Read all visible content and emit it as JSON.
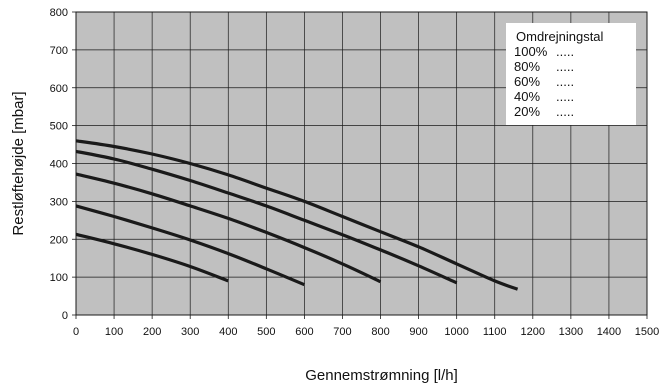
{
  "chart_data": {
    "type": "line",
    "xlabel": "Gennemstrømning [l/h]",
    "ylabel": "Restløftehøjde [mbar]",
    "xlim": [
      0,
      1500
    ],
    "ylim": [
      0,
      800
    ],
    "x_ticks": [
      "0",
      "100",
      "200",
      "300",
      "400",
      "500",
      "600",
      "700",
      "800",
      "900",
      "1000",
      "1100",
      "1200",
      "1300",
      "1400",
      "1500"
    ],
    "y_ticks": [
      "0",
      "100",
      "200",
      "300",
      "400",
      "500",
      "600",
      "700",
      "800"
    ],
    "grid": true,
    "background": "#c0c0c0",
    "line_color": "#1a1a1a",
    "legend": {
      "title": "Omdrejningstal",
      "placement": "top-right",
      "entries": [
        {
          "label": "100%",
          "marker": "....."
        },
        {
          "label": "80%",
          "marker": "....."
        },
        {
          "label": "60%",
          "marker": "....."
        },
        {
          "label": "40%",
          "marker": "....."
        },
        {
          "label": "20%",
          "marker": "....."
        }
      ]
    },
    "series": [
      {
        "x": [
          0,
          100,
          200,
          300,
          400,
          500,
          600,
          700,
          800,
          900,
          1000,
          1100,
          1160
        ],
        "y": [
          460,
          445,
          425,
          400,
          370,
          335,
          300,
          260,
          220,
          180,
          135,
          90,
          68
        ]
      },
      {
        "x": [
          0,
          100,
          200,
          300,
          400,
          500,
          600,
          700,
          800,
          900,
          1000
        ],
        "y": [
          432,
          412,
          385,
          355,
          322,
          288,
          250,
          212,
          172,
          130,
          85
        ]
      },
      {
        "x": [
          0,
          100,
          200,
          300,
          400,
          500,
          600,
          700,
          800
        ],
        "y": [
          372,
          348,
          320,
          288,
          255,
          218,
          178,
          135,
          88
        ]
      },
      {
        "x": [
          0,
          100,
          200,
          300,
          400,
          500,
          600
        ],
        "y": [
          288,
          260,
          230,
          198,
          162,
          122,
          80
        ]
      },
      {
        "x": [
          0,
          100,
          200,
          300,
          400
        ],
        "y": [
          213,
          188,
          160,
          128,
          90
        ]
      }
    ]
  }
}
